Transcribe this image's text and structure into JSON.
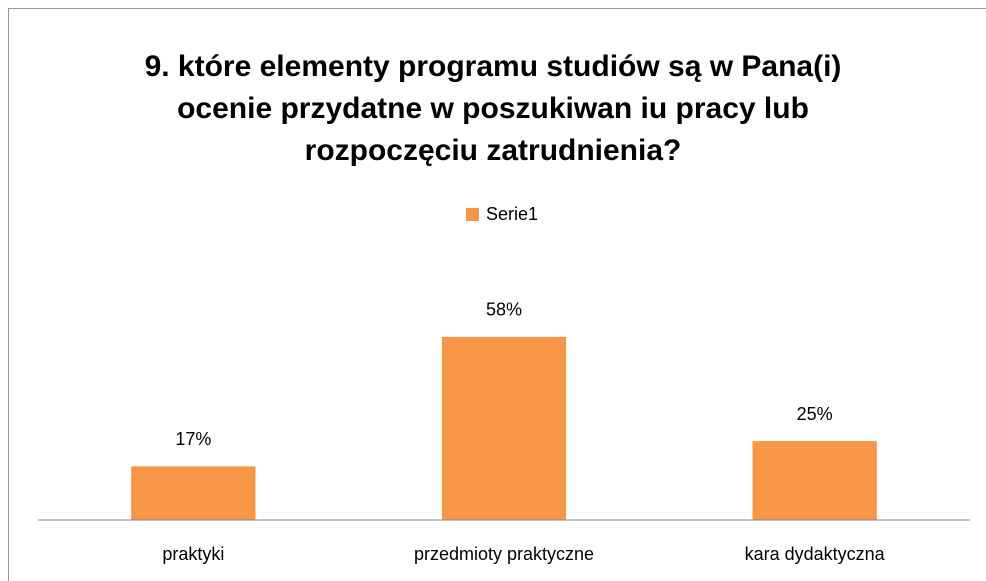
{
  "chart_data": {
    "type": "bar",
    "title": [
      "9. które elementy programu studiów są w Pana(i)",
      "ocenie przydatne w poszukiwan iu pracy lub",
      "rozpoczęciu zatrudnienia?"
    ],
    "categories": [
      "praktyki",
      "przedmioty praktyczne",
      "kara dydaktyczna"
    ],
    "series": [
      {
        "name": "Serie1",
        "color": "#f79646",
        "values": [
          17,
          58,
          25
        ],
        "value_labels": [
          "17%",
          "58%",
          "25%"
        ]
      }
    ],
    "ylim": [
      0,
      70
    ],
    "legend": "top"
  }
}
